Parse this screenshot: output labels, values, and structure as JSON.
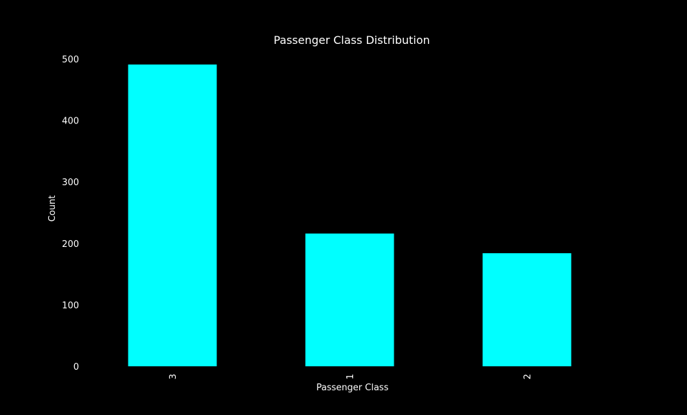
{
  "chart_data": {
    "type": "bar",
    "title": "Passenger Class Distribution",
    "xlabel": "Passenger Class",
    "ylabel": "Count",
    "categories": [
      "3",
      "1",
      "2"
    ],
    "values": [
      491,
      216,
      184
    ],
    "ylim": [
      0,
      500
    ],
    "yticks": [
      "0",
      "100",
      "200",
      "300",
      "400",
      "500"
    ],
    "ytick_values": [
      0,
      100,
      200,
      300,
      400,
      500
    ],
    "grid": false,
    "legend": "none",
    "colors": {
      "background": "#000000",
      "bar": "#00ffff",
      "text": "#ffffff"
    }
  }
}
